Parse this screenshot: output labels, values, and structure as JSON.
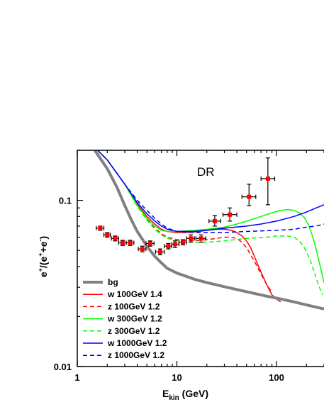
{
  "chart_data": {
    "type": "line",
    "xlabel": {
      "main": "E",
      "sub": "kin",
      "rest": " (GeV)"
    },
    "ylabel": {
      "parts": [
        "e",
        "+",
        "/(e",
        "+",
        "+e",
        "-",
        ")"
      ]
    },
    "annotation": "DR",
    "x_scale": "log",
    "y_scale": "log",
    "xlim": [
      1,
      300
    ],
    "ylim": [
      0.01,
      0.2
    ],
    "x_ticks": [
      {
        "value": 1,
        "label": "1"
      },
      {
        "value": 10,
        "label": "10"
      },
      {
        "value": 100,
        "label": "100"
      }
    ],
    "y_ticks": [
      {
        "value": 0.01,
        "label": "0.01"
      },
      {
        "value": 0.1,
        "label": "0.1"
      }
    ],
    "legend_position": "bottom-left",
    "series": [
      {
        "name": "bg",
        "color": "#808080",
        "dash": "solid",
        "width": 4,
        "points": [
          [
            1.5,
            0.2
          ],
          [
            2,
            0.155
          ],
          [
            2.5,
            0.12
          ],
          [
            3,
            0.093
          ],
          [
            3.5,
            0.076
          ],
          [
            4,
            0.065
          ],
          [
            5,
            0.053
          ],
          [
            6,
            0.046
          ],
          [
            7,
            0.042
          ],
          [
            8,
            0.039
          ],
          [
            10,
            0.0365
          ],
          [
            15,
            0.0335
          ],
          [
            20,
            0.032
          ],
          [
            30,
            0.0302
          ],
          [
            50,
            0.0282
          ],
          [
            80,
            0.0265
          ],
          [
            100,
            0.0258
          ],
          [
            150,
            0.0245
          ],
          [
            200,
            0.0235
          ],
          [
            300,
            0.0222
          ]
        ]
      },
      {
        "name": "w  100GeV 1.4",
        "color": "#ff0000",
        "dash": "solid",
        "width": 1.5,
        "points": [
          [
            1.6,
            0.2
          ],
          [
            2,
            0.175
          ],
          [
            3,
            0.125
          ],
          [
            4,
            0.095
          ],
          [
            5,
            0.08
          ],
          [
            6,
            0.072
          ],
          [
            7,
            0.067
          ],
          [
            8,
            0.065
          ],
          [
            10,
            0.064
          ],
          [
            13,
            0.064
          ],
          [
            17,
            0.065
          ],
          [
            20,
            0.066
          ],
          [
            25,
            0.067
          ],
          [
            30,
            0.067
          ],
          [
            35,
            0.066
          ],
          [
            40,
            0.064
          ],
          [
            45,
            0.061
          ],
          [
            50,
            0.057
          ],
          [
            55,
            0.052
          ],
          [
            60,
            0.046
          ],
          [
            65,
            0.041
          ],
          [
            70,
            0.037
          ],
          [
            80,
            0.031
          ],
          [
            90,
            0.027
          ],
          [
            100,
            0.0255
          ],
          [
            110,
            0.0245
          ]
        ]
      },
      {
        "name": "z  100GeV 1.2",
        "color": "#ff0000",
        "dash": "dashed",
        "width": 1.5,
        "points": [
          [
            1.6,
            0.2
          ],
          [
            2,
            0.175
          ],
          [
            3,
            0.125
          ],
          [
            4,
            0.093
          ],
          [
            5,
            0.077
          ],
          [
            6,
            0.068
          ],
          [
            7,
            0.063
          ],
          [
            8,
            0.06
          ],
          [
            10,
            0.058
          ],
          [
            15,
            0.057
          ],
          [
            20,
            0.058
          ],
          [
            25,
            0.059
          ],
          [
            30,
            0.06
          ],
          [
            35,
            0.06
          ],
          [
            40,
            0.059
          ],
          [
            45,
            0.056
          ],
          [
            50,
            0.052
          ],
          [
            55,
            0.047
          ],
          [
            60,
            0.043
          ],
          [
            70,
            0.036
          ],
          [
            80,
            0.031
          ],
          [
            90,
            0.028
          ]
        ]
      },
      {
        "name": "w  300GeV 1.2",
        "color": "#00ff00",
        "dash": "solid",
        "width": 1.5,
        "points": [
          [
            1.6,
            0.2
          ],
          [
            2,
            0.175
          ],
          [
            3,
            0.125
          ],
          [
            4,
            0.093
          ],
          [
            5,
            0.078
          ],
          [
            6,
            0.07
          ],
          [
            7,
            0.066
          ],
          [
            8,
            0.065
          ],
          [
            10,
            0.065
          ],
          [
            15,
            0.066
          ],
          [
            20,
            0.067
          ],
          [
            30,
            0.069
          ],
          [
            40,
            0.072
          ],
          [
            50,
            0.075
          ],
          [
            70,
            0.08
          ],
          [
            90,
            0.084
          ],
          [
            110,
            0.087
          ],
          [
            130,
            0.088
          ],
          [
            150,
            0.087
          ],
          [
            170,
            0.084
          ],
          [
            190,
            0.079
          ],
          [
            210,
            0.071
          ],
          [
            230,
            0.061
          ],
          [
            250,
            0.051
          ],
          [
            270,
            0.042
          ],
          [
            290,
            0.035
          ],
          [
            300,
            0.032
          ]
        ]
      },
      {
        "name": "z  300GeV 1.2",
        "color": "#00ff00",
        "dash": "dashed",
        "width": 1.5,
        "points": [
          [
            1.6,
            0.2
          ],
          [
            2,
            0.175
          ],
          [
            3,
            0.125
          ],
          [
            4,
            0.092
          ],
          [
            5,
            0.076
          ],
          [
            6,
            0.067
          ],
          [
            7,
            0.062
          ],
          [
            8,
            0.059
          ],
          [
            10,
            0.057
          ],
          [
            15,
            0.056
          ],
          [
            20,
            0.056
          ],
          [
            30,
            0.057
          ],
          [
            50,
            0.059
          ],
          [
            80,
            0.06
          ],
          [
            100,
            0.061
          ],
          [
            130,
            0.061
          ],
          [
            150,
            0.06
          ],
          [
            170,
            0.057
          ],
          [
            190,
            0.052
          ],
          [
            210,
            0.046
          ],
          [
            230,
            0.04
          ],
          [
            250,
            0.034
          ],
          [
            270,
            0.03
          ],
          [
            290,
            0.027
          ]
        ]
      },
      {
        "name": "w  1000GeV 1.2",
        "color": "#0000ff",
        "dash": "solid",
        "width": 1.5,
        "points": [
          [
            1.6,
            0.2
          ],
          [
            2,
            0.175
          ],
          [
            3,
            0.125
          ],
          [
            4,
            0.097
          ],
          [
            5,
            0.083
          ],
          [
            6,
            0.075
          ],
          [
            7,
            0.07
          ],
          [
            8,
            0.067
          ],
          [
            10,
            0.065
          ],
          [
            15,
            0.065
          ],
          [
            20,
            0.066
          ],
          [
            30,
            0.068
          ],
          [
            50,
            0.07
          ],
          [
            70,
            0.072
          ],
          [
            100,
            0.075
          ],
          [
            150,
            0.08
          ],
          [
            200,
            0.085
          ],
          [
            250,
            0.09
          ],
          [
            300,
            0.094
          ]
        ]
      },
      {
        "name": "z  1000GeV 1.2",
        "color": "#0000ff",
        "dash": "dashed",
        "width": 1.5,
        "points": [
          [
            1.6,
            0.2
          ],
          [
            2,
            0.175
          ],
          [
            3,
            0.125
          ],
          [
            4,
            0.1
          ],
          [
            5,
            0.087
          ],
          [
            6,
            0.078
          ],
          [
            7,
            0.072
          ],
          [
            8,
            0.068
          ],
          [
            10,
            0.065
          ],
          [
            15,
            0.064
          ],
          [
            20,
            0.064
          ],
          [
            30,
            0.064
          ],
          [
            50,
            0.065
          ],
          [
            100,
            0.066
          ],
          [
            150,
            0.067
          ],
          [
            200,
            0.069
          ],
          [
            250,
            0.07
          ],
          [
            300,
            0.072
          ]
        ]
      }
    ],
    "data_points": {
      "color": "#ff0000",
      "points": [
        {
          "x": 1.7,
          "y": 0.068,
          "xerr": [
            1.55,
            1.85
          ],
          "yerr": [
            0.066,
            0.07
          ]
        },
        {
          "x": 2.0,
          "y": 0.062,
          "xerr": [
            1.85,
            2.15
          ],
          "yerr": [
            0.06,
            0.064
          ]
        },
        {
          "x": 2.4,
          "y": 0.059,
          "xerr": [
            2.2,
            2.6
          ],
          "yerr": [
            0.057,
            0.061
          ]
        },
        {
          "x": 2.85,
          "y": 0.0555,
          "xerr": [
            2.6,
            3.1
          ],
          "yerr": [
            0.0535,
            0.0575
          ]
        },
        {
          "x": 3.4,
          "y": 0.0555,
          "xerr": [
            3.1,
            3.7
          ],
          "yerr": [
            0.0535,
            0.0575
          ]
        },
        {
          "x": 4.5,
          "y": 0.051,
          "xerr": [
            4.1,
            4.9
          ],
          "yerr": [
            0.049,
            0.053
          ]
        },
        {
          "x": 5.4,
          "y": 0.055,
          "xerr": [
            4.9,
            5.9
          ],
          "yerr": [
            0.053,
            0.057
          ]
        },
        {
          "x": 6.8,
          "y": 0.049,
          "xerr": [
            6.1,
            7.5
          ],
          "yerr": [
            0.047,
            0.051
          ]
        },
        {
          "x": 8.2,
          "y": 0.053,
          "xerr": [
            7.5,
            8.9
          ],
          "yerr": [
            0.051,
            0.055
          ]
        },
        {
          "x": 9.6,
          "y": 0.0545,
          "xerr": [
            8.9,
            10.5
          ],
          "yerr": [
            0.052,
            0.057
          ]
        },
        {
          "x": 11.5,
          "y": 0.056,
          "xerr": [
            10.5,
            12.5
          ],
          "yerr": [
            0.054,
            0.058
          ]
        },
        {
          "x": 13.8,
          "y": 0.059,
          "xerr": [
            12.5,
            15.0
          ],
          "yerr": [
            0.056,
            0.062
          ]
        },
        {
          "x": 17.5,
          "y": 0.059,
          "xerr": [
            15.5,
            19.5
          ],
          "yerr": [
            0.056,
            0.062
          ]
        },
        {
          "x": 24.0,
          "y": 0.075,
          "xerr": [
            21.0,
            27.5
          ],
          "yerr": [
            0.07,
            0.081
          ]
        },
        {
          "x": 34.0,
          "y": 0.082,
          "xerr": [
            29.0,
            40.0
          ],
          "yerr": [
            0.075,
            0.09
          ]
        },
        {
          "x": 53.0,
          "y": 0.105,
          "xerr": [
            45.0,
            62.0
          ],
          "yerr": [
            0.093,
            0.125
          ]
        },
        {
          "x": 82.0,
          "y": 0.135,
          "xerr": [
            70.0,
            96.0
          ],
          "yerr": [
            0.094,
            0.18
          ]
        }
      ]
    }
  }
}
